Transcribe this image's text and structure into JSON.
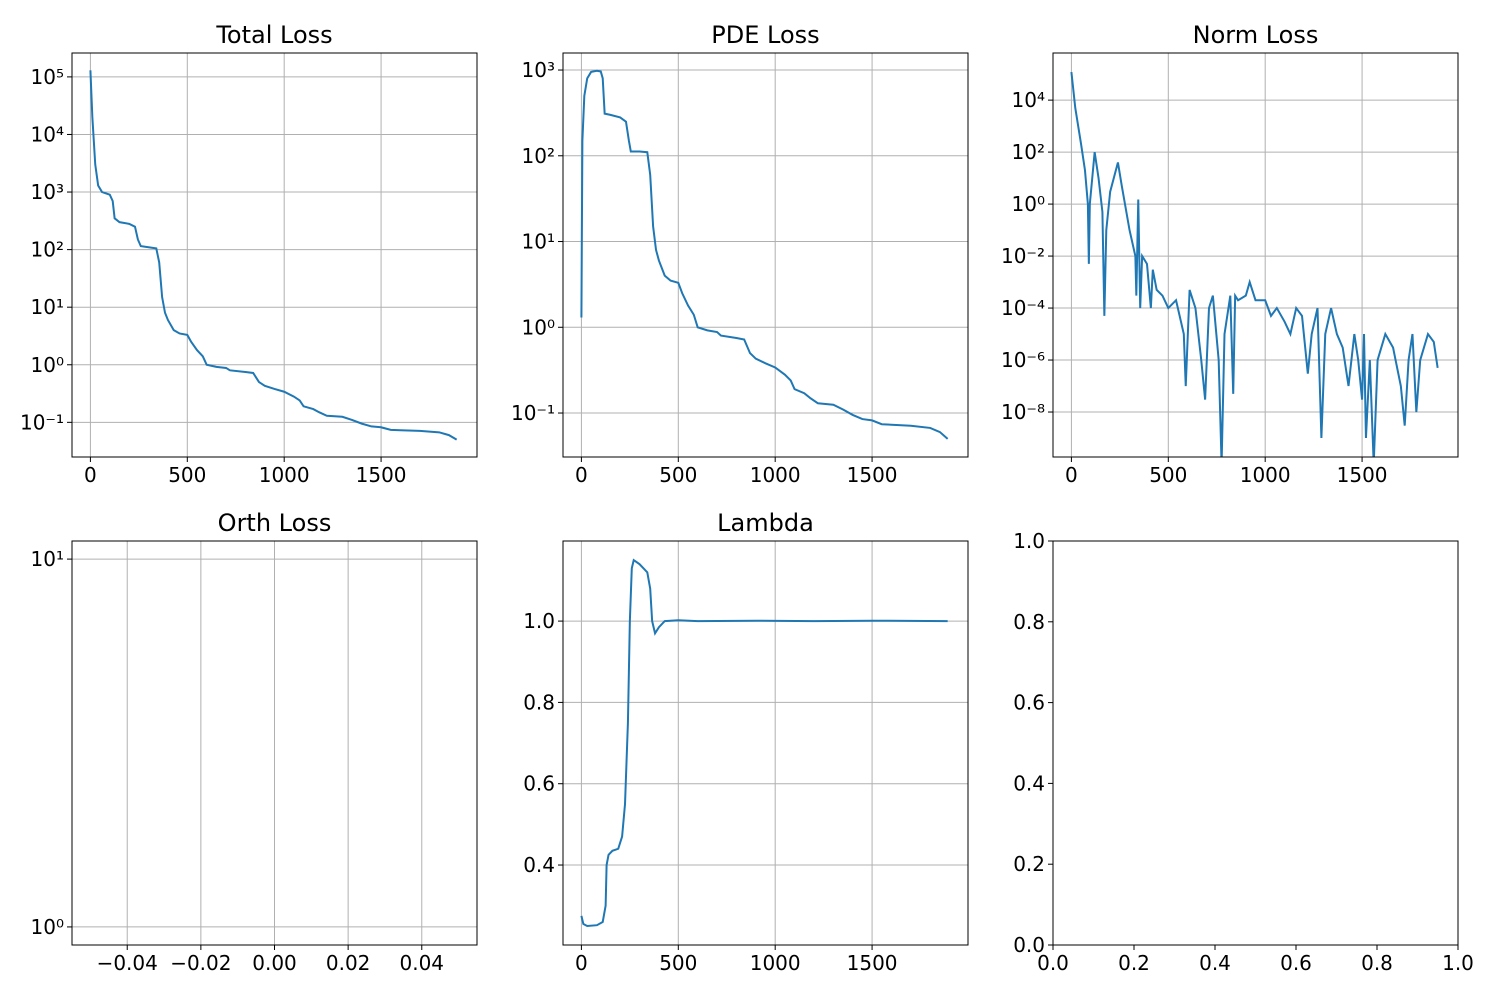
{
  "chart_data": [
    {
      "type": "line",
      "title": "Total Loss",
      "yscale": "log",
      "grid": true,
      "color": "#1f77b4",
      "xlim": [
        -95,
        1995
      ],
      "xticks": [
        0,
        500,
        1000,
        1500
      ],
      "ylim": [
        0.025,
        260000
      ],
      "yticks": [
        {
          "value": 0.1,
          "label": "10⁻¹"
        },
        {
          "value": 1,
          "label": "10⁰"
        },
        {
          "value": 10,
          "label": "10¹"
        },
        {
          "value": 100,
          "label": "10²"
        },
        {
          "value": 1000,
          "label": "10³"
        },
        {
          "value": 10000,
          "label": "10⁴"
        },
        {
          "value": 100000,
          "label": "10⁵"
        }
      ],
      "x": [
        0,
        10,
        25,
        40,
        60,
        100,
        115,
        125,
        150,
        200,
        230,
        245,
        260,
        300,
        340,
        355,
        370,
        385,
        400,
        430,
        460,
        500,
        520,
        550,
        580,
        600,
        650,
        700,
        720,
        800,
        840,
        870,
        900,
        950,
        1000,
        1050,
        1080,
        1100,
        1150,
        1180,
        1220,
        1300,
        1350,
        1400,
        1450,
        1500,
        1550,
        1600,
        1700,
        1800,
        1850,
        1890
      ],
      "values": [
        130000,
        20000,
        3000,
        1300,
        1000,
        900,
        700,
        350,
        300,
        280,
        250,
        150,
        115,
        110,
        105,
        60,
        15,
        8,
        6,
        4,
        3.5,
        3.3,
        2.5,
        1.8,
        1.4,
        1.0,
        0.92,
        0.88,
        0.8,
        0.75,
        0.72,
        0.5,
        0.43,
        0.38,
        0.34,
        0.28,
        0.24,
        0.19,
        0.17,
        0.15,
        0.13,
        0.125,
        0.11,
        0.095,
        0.085,
        0.082,
        0.074,
        0.073,
        0.071,
        0.067,
        0.06,
        0.05
      ]
    },
    {
      "type": "line",
      "title": "PDE Loss",
      "yscale": "log",
      "grid": true,
      "color": "#1f77b4",
      "xlim": [
        -95,
        1995
      ],
      "xticks": [
        0,
        500,
        1000,
        1500
      ],
      "ylim": [
        0.0307,
        1580
      ],
      "yticks": [
        {
          "value": 0.1,
          "label": "10⁻¹"
        },
        {
          "value": 1,
          "label": "10⁰"
        },
        {
          "value": 10,
          "label": "10¹"
        },
        {
          "value": 100,
          "label": "10²"
        },
        {
          "value": 1000,
          "label": "10³"
        }
      ],
      "x": [
        0,
        5,
        15,
        30,
        50,
        80,
        100,
        110,
        120,
        150,
        200,
        230,
        245,
        255,
        300,
        340,
        355,
        370,
        385,
        400,
        430,
        460,
        500,
        520,
        550,
        580,
        600,
        650,
        700,
        720,
        800,
        840,
        870,
        900,
        950,
        1000,
        1050,
        1080,
        1100,
        1150,
        1180,
        1220,
        1300,
        1350,
        1400,
        1450,
        1500,
        1550,
        1600,
        1700,
        1800,
        1850,
        1890
      ],
      "values": [
        1.3,
        150,
        500,
        800,
        950,
        980,
        960,
        800,
        310,
        300,
        280,
        250,
        150,
        112,
        112,
        110,
        60,
        15,
        8,
        6,
        4,
        3.5,
        3.3,
        2.5,
        1.8,
        1.4,
        1.0,
        0.92,
        0.88,
        0.8,
        0.75,
        0.72,
        0.5,
        0.43,
        0.38,
        0.34,
        0.28,
        0.24,
        0.19,
        0.17,
        0.15,
        0.13,
        0.125,
        0.11,
        0.095,
        0.085,
        0.082,
        0.074,
        0.073,
        0.071,
        0.067,
        0.06,
        0.05
      ]
    },
    {
      "type": "line",
      "title": "Norm Loss",
      "yscale": "log",
      "grid": true,
      "color": "#1f77b4",
      "xlim": [
        -95,
        1995
      ],
      "xticks": [
        0,
        500,
        1000,
        1500
      ],
      "ylim": [
        1.86e-10,
        650000
      ],
      "yticks": [
        {
          "value": 1e-08,
          "label": "10⁻⁸"
        },
        {
          "value": 1e-06,
          "label": "10⁻⁶"
        },
        {
          "value": 0.0001,
          "label": "10⁻⁴"
        },
        {
          "value": 0.01,
          "label": "10⁻²"
        },
        {
          "value": 1,
          "label": "10⁰"
        },
        {
          "value": 100,
          "label": "10²"
        },
        {
          "value": 10000,
          "label": "10⁴"
        }
      ],
      "x": [
        0,
        20,
        50,
        70,
        85,
        90,
        95,
        120,
        140,
        160,
        170,
        180,
        200,
        240,
        260,
        300,
        330,
        335,
        345,
        355,
        365,
        390,
        410,
        420,
        440,
        470,
        500,
        540,
        580,
        590,
        610,
        640,
        670,
        690,
        710,
        730,
        760,
        775,
        790,
        820,
        835,
        845,
        860,
        900,
        920,
        950,
        1000,
        1030,
        1060,
        1100,
        1130,
        1160,
        1190,
        1220,
        1240,
        1270,
        1290,
        1310,
        1340,
        1370,
        1400,
        1430,
        1460,
        1480,
        1500,
        1510,
        1520,
        1540,
        1560,
        1580,
        1620,
        1660,
        1700,
        1720,
        1740,
        1760,
        1780,
        1800,
        1840,
        1870,
        1890
      ],
      "values": [
        120000,
        5000,
        200,
        20,
        1,
        0.005,
        1,
        100,
        10,
        0.5,
        5e-05,
        0.1,
        3,
        40,
        5,
        0.1,
        0.01,
        0.0003,
        1.5,
        0.0001,
        0.01,
        0.005,
        0.0001,
        0.003,
        0.0005,
        0.0003,
        0.0001,
        0.0002,
        1e-05,
        1e-07,
        0.0005,
        0.0001,
        1e-06,
        3e-08,
        0.0001,
        0.0003,
        1e-06,
        1e-10,
        1e-05,
        0.0003,
        5e-08,
        0.0003,
        0.0002,
        0.0003,
        0.001,
        0.0002,
        0.0002,
        5e-05,
        0.0001,
        3e-05,
        1e-05,
        0.0001,
        5e-05,
        3e-07,
        1e-05,
        0.0001,
        1e-09,
        1e-05,
        0.0001,
        1e-05,
        3e-06,
        1e-07,
        1e-05,
        1e-06,
        3e-08,
        1e-05,
        1e-09,
        1e-06,
        1e-10,
        1e-06,
        1e-05,
        3e-06,
        1e-07,
        3e-09,
        1e-06,
        1e-05,
        1e-08,
        1e-06,
        1e-05,
        5e-06,
        5e-07
      ]
    },
    {
      "type": "line",
      "title": "Orth Loss",
      "yscale": "log",
      "grid": true,
      "xlim": [
        -0.055,
        0.055
      ],
      "xticks": [
        {
          "value": -0.04,
          "label": "−0.04"
        },
        {
          "value": -0.02,
          "label": "−0.02"
        },
        {
          "value": 0,
          "label": "0.00"
        },
        0.02,
        0.04
      ],
      "ylim": [
        0.893,
        11.2
      ],
      "yticks": [
        {
          "value": 1,
          "label": "10⁰"
        },
        {
          "value": 10,
          "label": "10¹"
        }
      ]
    },
    {
      "type": "line",
      "title": "Lambda",
      "grid": true,
      "color": "#1f77b4",
      "xlim": [
        -95,
        1995
      ],
      "xticks": [
        0,
        500,
        1000,
        1500
      ],
      "ylim": [
        0.2033,
        1.197
      ],
      "yticks": [
        0.4,
        0.6,
        0.8,
        {
          "value": 1,
          "label": "1.0"
        }
      ],
      "x": [
        0,
        10,
        30,
        80,
        110,
        125,
        130,
        140,
        160,
        190,
        210,
        225,
        240,
        250,
        260,
        270,
        300,
        340,
        355,
        365,
        380,
        400,
        430,
        500,
        600,
        900,
        1200,
        1500,
        1890
      ],
      "values": [
        0.275,
        0.255,
        0.25,
        0.252,
        0.26,
        0.3,
        0.4,
        0.425,
        0.435,
        0.44,
        0.47,
        0.55,
        0.75,
        1.0,
        1.13,
        1.15,
        1.14,
        1.12,
        1.08,
        1.0,
        0.97,
        0.985,
        1.0,
        1.002,
        1.0,
        1.001,
        1.0,
        1.001,
        1.0
      ]
    },
    {
      "type": "line",
      "grid": false,
      "xlim": [
        0,
        1
      ],
      "xticks": [
        {
          "value": 0,
          "label": "0.0"
        },
        0.2,
        0.4,
        0.6,
        0.8,
        {
          "value": 1,
          "label": "1.0"
        }
      ],
      "ylim": [
        0,
        1
      ],
      "yticks": [
        {
          "value": 0,
          "label": "0.0"
        },
        0.2,
        0.4,
        0.6,
        0.8,
        {
          "value": 1,
          "label": "1.0"
        }
      ]
    }
  ]
}
